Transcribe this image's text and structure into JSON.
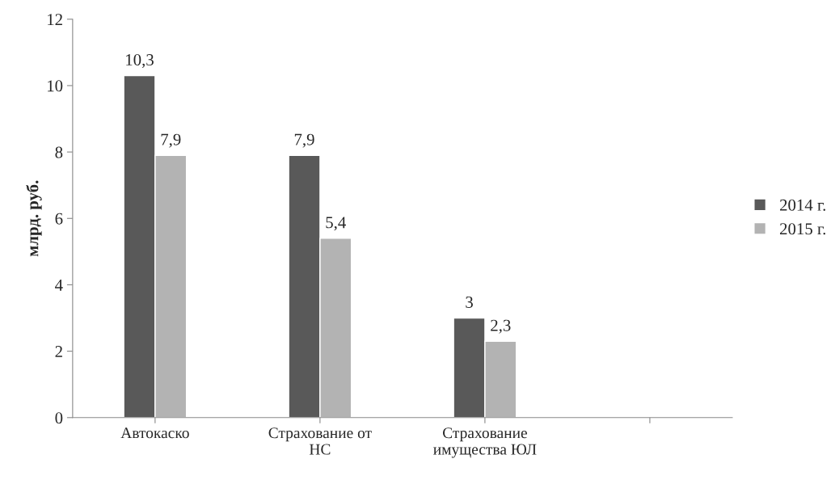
{
  "chart_data": {
    "type": "bar",
    "ylabel": "млрд. руб.",
    "categories": [
      "Автокаско",
      "Страхование от\nНС",
      "Страхование\nимущества ЮЛ",
      null
    ],
    "series": [
      {
        "name": "2014 г.",
        "color": "#595959",
        "values": [
          10.3,
          7.9,
          3,
          null
        ],
        "value_labels": [
          "10,3",
          "7,9",
          "3",
          null
        ]
      },
      {
        "name": "2015 г.",
        "color": "#b3b3b3",
        "values": [
          7.9,
          5.4,
          2.3,
          null
        ],
        "value_labels": [
          "7,9",
          "5,4",
          "2,3",
          null
        ]
      }
    ],
    "ylim": [
      0,
      12
    ],
    "yticks": [
      0,
      2,
      4,
      6,
      8,
      10,
      12
    ],
    "grid": false,
    "legend": "right"
  }
}
